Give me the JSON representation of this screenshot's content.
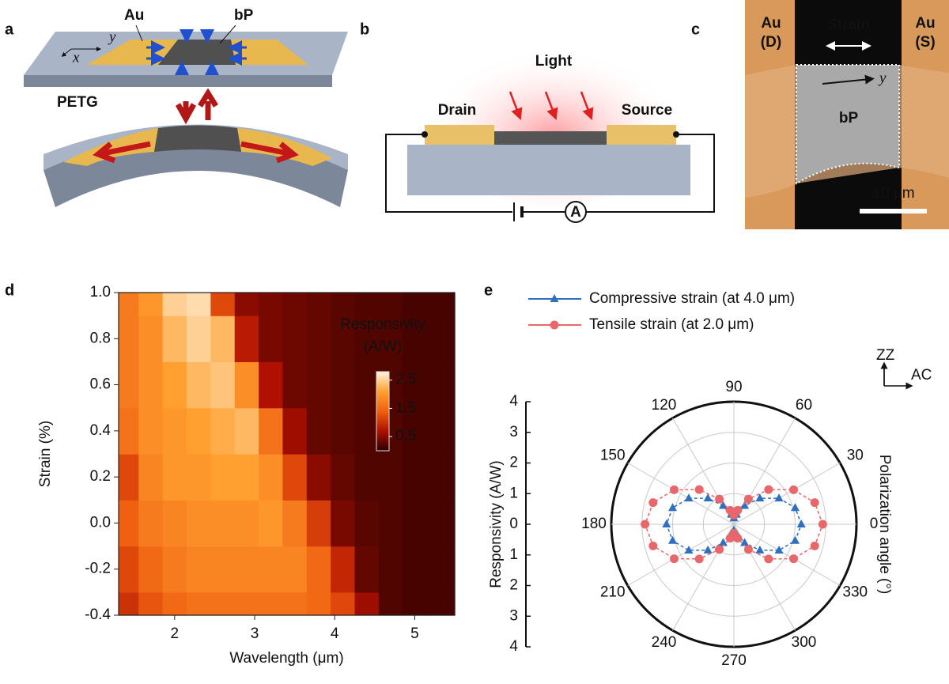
{
  "panels": {
    "a": {
      "label": "a",
      "au": "Au",
      "bp": "bP",
      "substrate": "PETG",
      "axis_x": "x",
      "axis_y": "y"
    },
    "b": {
      "label": "b",
      "light": "Light",
      "drain": "Drain",
      "source": "Source",
      "meter": "A"
    },
    "c": {
      "label": "c",
      "left_top": "Au",
      "left_bottom": "(D)",
      "right_top": "Au",
      "right_bottom": "(S)",
      "strain": "Strain",
      "axis_y": "y",
      "flake": "bP",
      "scale": "10 μm"
    }
  },
  "chart_data": [
    {
      "type": "heatmap",
      "label": "d",
      "xlabel": "Wavelength (μm)",
      "ylabel": "Strain (%)",
      "xlim": [
        1.3,
        5.5
      ],
      "ylim": [
        -0.4,
        1.0
      ],
      "xticks": [
        2,
        3,
        4,
        5
      ],
      "yticks": [
        {
          "value": 1.0,
          "label": "1.0"
        },
        {
          "value": 0.8,
          "label": "0.8"
        },
        {
          "value": 0.6,
          "label": "0.6"
        },
        {
          "value": 0.4,
          "label": "0.4"
        },
        {
          "value": 0.2,
          "label": "0.2"
        },
        {
          "value": 0.0,
          "label": "0.0"
        },
        {
          "value": -0.2,
          "label": "-0.2"
        },
        {
          "value": -0.4,
          "label": "-0.4"
        }
      ],
      "x": [
        1.4,
        1.7,
        2.0,
        2.3,
        2.6,
        2.9,
        3.2,
        3.5,
        3.8,
        4.1,
        4.4,
        4.7,
        5.0,
        5.3
      ],
      "y": [
        -0.4,
        -0.2,
        0.0,
        0.2,
        0.4,
        0.6,
        0.8,
        1.0
      ],
      "values": [
        [
          1.0,
          1.3,
          1.5,
          1.6,
          1.6,
          1.6,
          1.6,
          1.6,
          1.5,
          1.2,
          0.6,
          0.2,
          0.15,
          0.15
        ],
        [
          1.2,
          1.5,
          1.7,
          1.8,
          1.8,
          1.8,
          1.8,
          1.8,
          1.5,
          0.9,
          0.3,
          0.2,
          0.15,
          0.15
        ],
        [
          1.4,
          1.7,
          1.8,
          1.9,
          1.9,
          1.9,
          2.0,
          1.7,
          1.1,
          0.4,
          0.25,
          0.2,
          0.15,
          0.15
        ],
        [
          1.2,
          1.8,
          2.0,
          2.0,
          2.1,
          2.1,
          1.9,
          1.2,
          0.5,
          0.3,
          0.2,
          0.2,
          0.15,
          0.15
        ],
        [
          1.6,
          1.9,
          2.0,
          2.1,
          2.2,
          2.3,
          1.6,
          0.6,
          0.3,
          0.25,
          0.2,
          0.2,
          0.15,
          0.15
        ],
        [
          1.7,
          1.9,
          2.1,
          2.3,
          2.4,
          1.9,
          0.7,
          0.35,
          0.3,
          0.25,
          0.2,
          0.2,
          0.15,
          0.15
        ],
        [
          1.7,
          1.9,
          2.3,
          2.5,
          2.3,
          0.8,
          0.4,
          0.35,
          0.3,
          0.25,
          0.2,
          0.2,
          0.15,
          0.15
        ],
        [
          1.7,
          2.0,
          2.5,
          2.6,
          1.2,
          0.5,
          0.4,
          0.35,
          0.3,
          0.25,
          0.2,
          0.2,
          0.15,
          0.15
        ]
      ],
      "colormap": [
        "#2a0000",
        "#b01000",
        "#f06010",
        "#ffa030",
        "#fff4e0"
      ],
      "colorbar": {
        "title": [
          "Responsivity",
          "(A/W)"
        ],
        "lim": [
          0,
          2.8
        ],
        "ticks": [
          2.5,
          1.5,
          0.5
        ]
      }
    },
    {
      "type": "polar",
      "label": "e",
      "rlabel": "Responsivity (A/W)",
      "thetalabel": "Polarization angle (°)",
      "rlim": [
        0,
        4
      ],
      "rticks": [
        0,
        1,
        2,
        3,
        4
      ],
      "thetaticks": [
        0,
        30,
        60,
        90,
        120,
        150,
        180,
        210,
        240,
        270,
        300,
        330
      ],
      "inset": {
        "vertical": "ZZ",
        "horizontal": "AC"
      },
      "theta": [
        0,
        15,
        30,
        45,
        60,
        75,
        90,
        105,
        120,
        135,
        150,
        165,
        180,
        195,
        210,
        225,
        240,
        255,
        270,
        285,
        300,
        315,
        330,
        345
      ],
      "series": [
        {
          "name": "Compressive strain (at 4.0 μm)",
          "color": "#2e6fc0",
          "marker": "triangle",
          "values": [
            2.2,
            2.07,
            1.7,
            1.2,
            0.7,
            0.33,
            0.2,
            0.33,
            0.7,
            1.2,
            1.7,
            2.07,
            2.2,
            2.07,
            1.7,
            1.2,
            0.7,
            0.33,
            0.2,
            0.33,
            0.7,
            1.2,
            1.7,
            2.07
          ]
        },
        {
          "name": "Tensile strain (at 2.0 μm)",
          "color": "#e8676b",
          "marker": "circle",
          "values": [
            2.9,
            2.73,
            2.25,
            1.6,
            0.95,
            0.47,
            0.3,
            0.47,
            0.95,
            1.6,
            2.25,
            2.73,
            2.9,
            2.73,
            2.25,
            1.6,
            0.95,
            0.47,
            0.3,
            0.47,
            0.95,
            1.6,
            2.25,
            2.73
          ]
        }
      ]
    }
  ]
}
